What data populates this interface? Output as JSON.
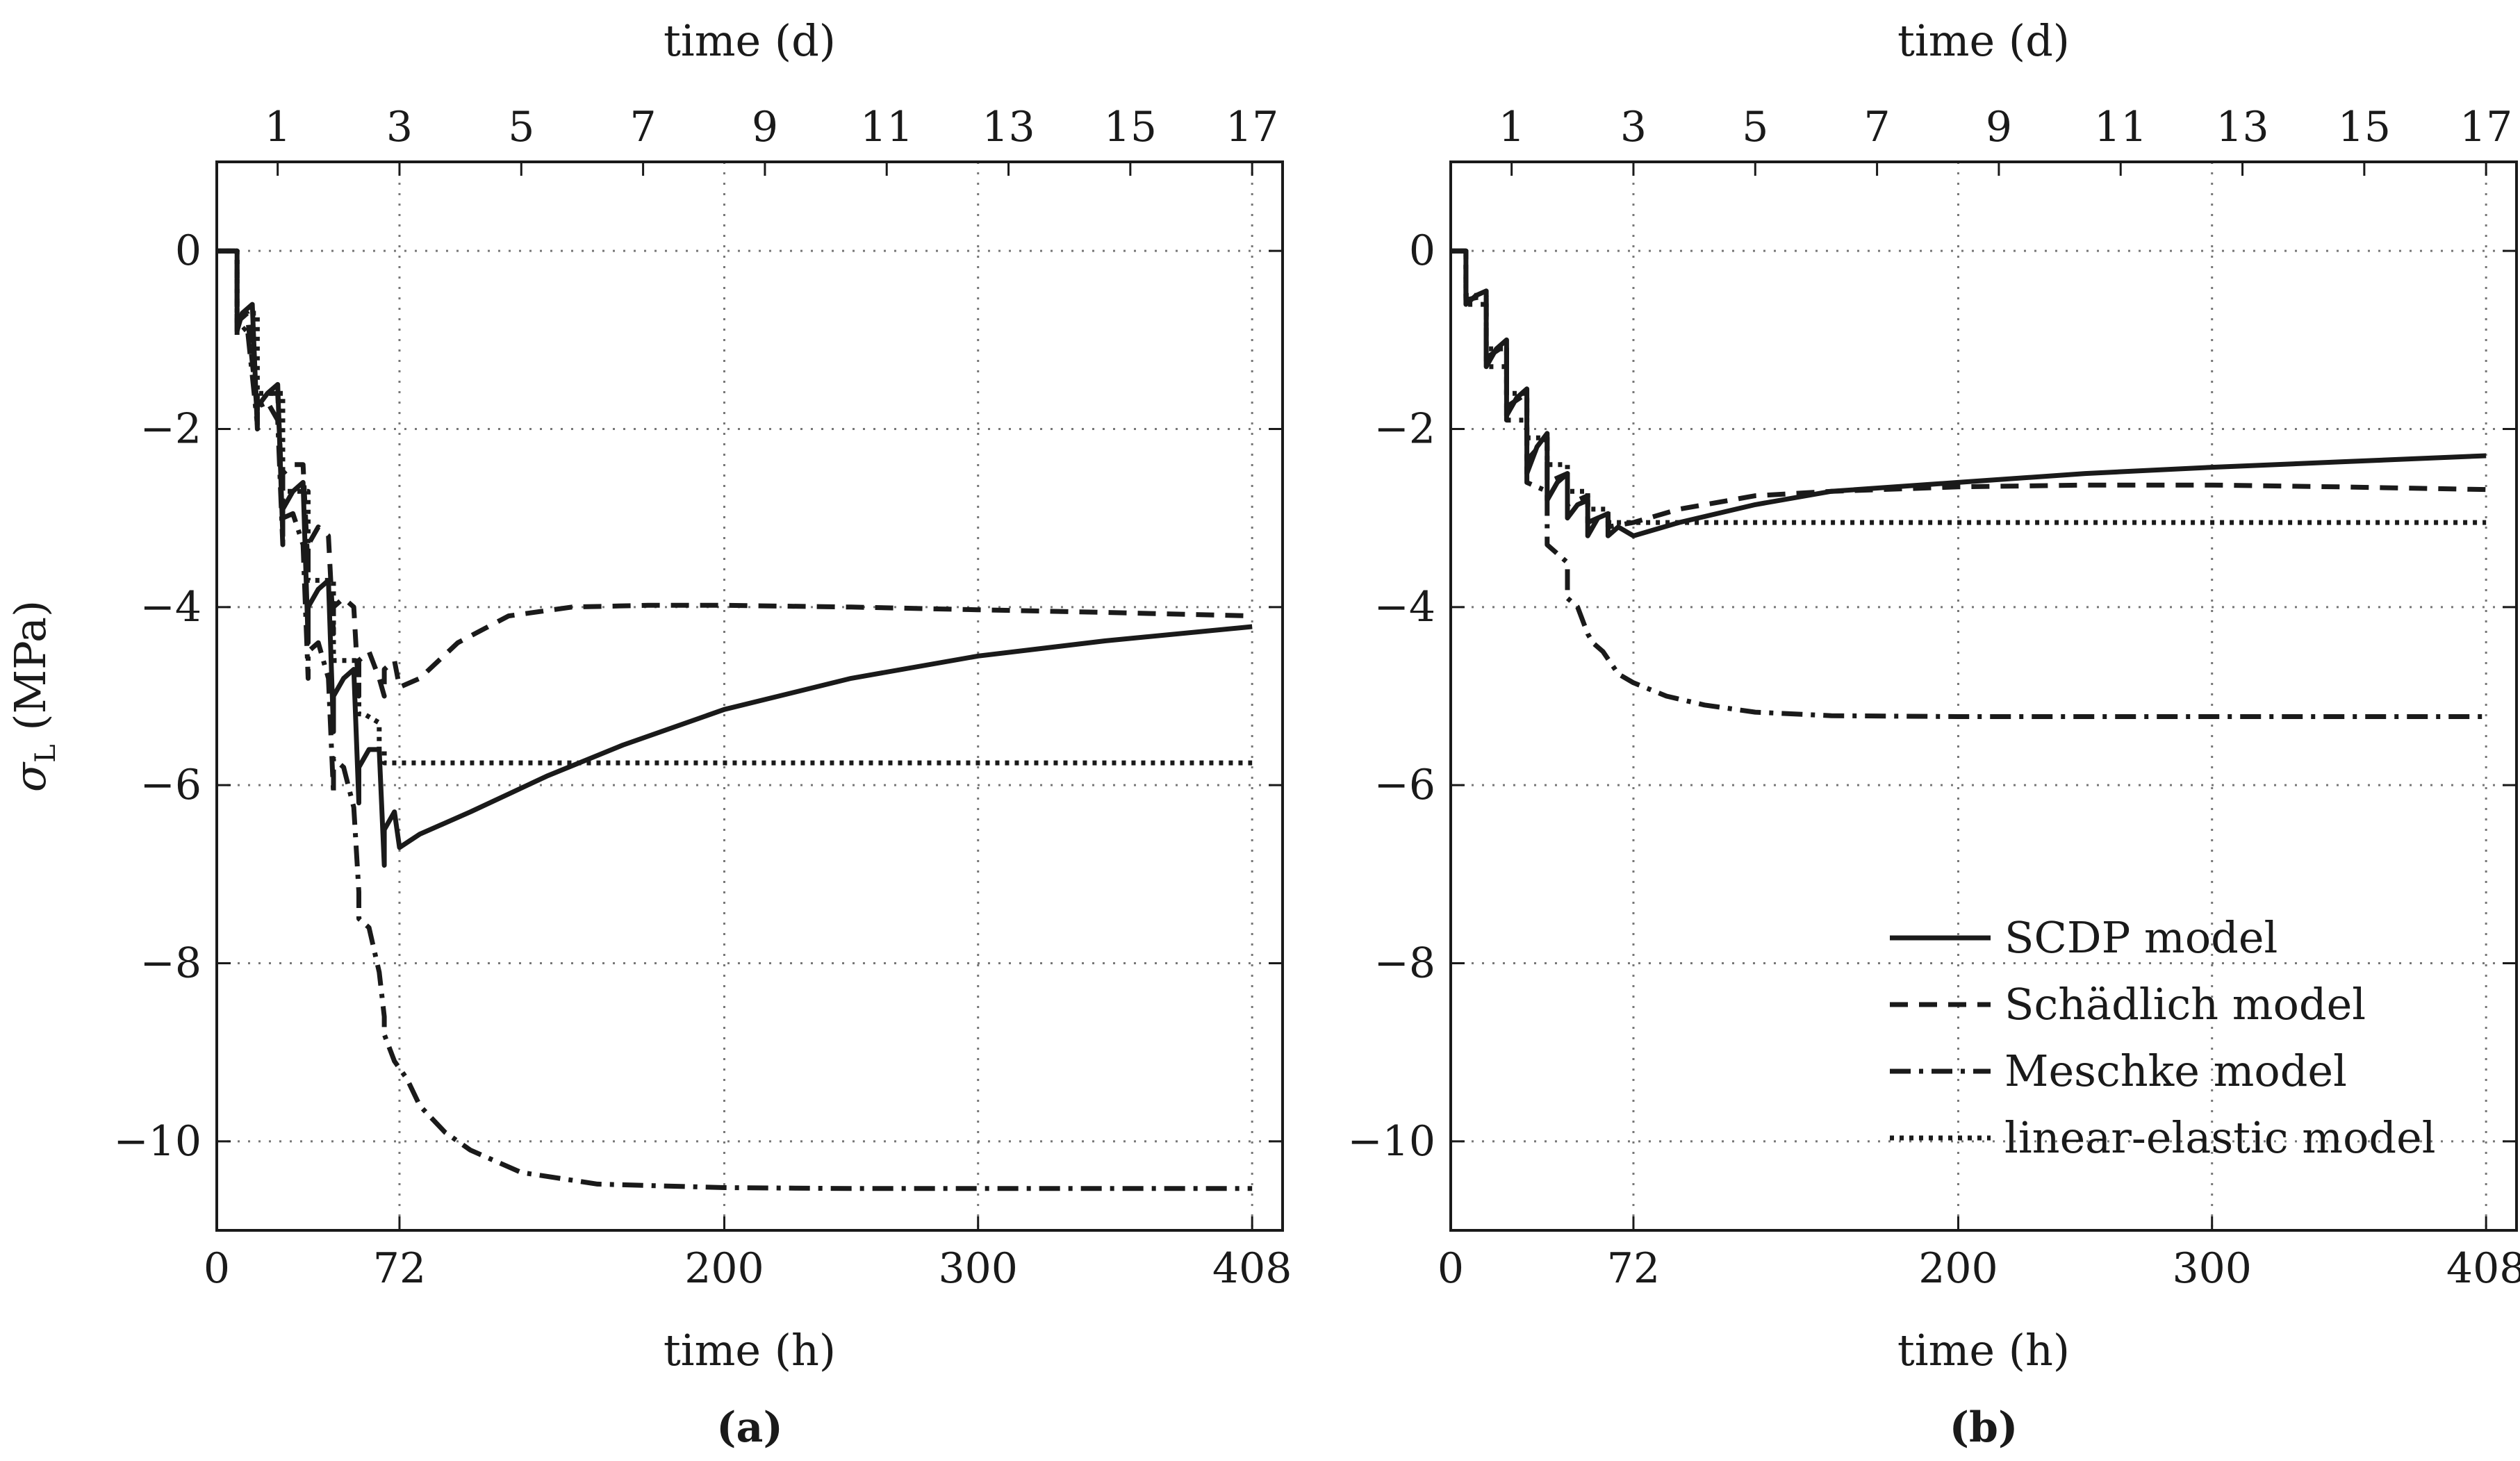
{
  "chart_data": [
    {
      "type": "line",
      "panel_label": "(a)",
      "xlabel": "time (h)",
      "ylabel": "σL (MPa)",
      "x2label": "time (d)",
      "xlim": [
        0,
        420
      ],
      "ylim": [
        -11,
        1
      ],
      "xticks": [
        0,
        72,
        200,
        300,
        408
      ],
      "x2ticks": [
        1,
        3,
        5,
        7,
        9,
        11,
        13,
        15,
        17
      ],
      "yticks": [
        0,
        -2,
        -4,
        -6,
        -8,
        -10
      ],
      "grid": true,
      "series": [
        {
          "name": "SCDP model",
          "style": "solid",
          "x": [
            0,
            8,
            8,
            10,
            14,
            16,
            16,
            20,
            24,
            26,
            26,
            30,
            34,
            36,
            36,
            40,
            44,
            46,
            46,
            50,
            54,
            56,
            56,
            60,
            64,
            66,
            66,
            70,
            72,
            80,
            100,
            130,
            160,
            200,
            250,
            300,
            350,
            408
          ],
          "y": [
            0,
            0,
            -0.9,
            -0.7,
            -0.6,
            -2.0,
            -1.75,
            -1.6,
            -1.5,
            -3.2,
            -2.9,
            -2.7,
            -2.6,
            -4.4,
            -4.0,
            -3.8,
            -3.7,
            -5.4,
            -5.0,
            -4.8,
            -4.7,
            -6.2,
            -5.8,
            -5.6,
            -5.6,
            -6.9,
            -6.5,
            -6.3,
            -6.7,
            -6.55,
            -6.3,
            -5.9,
            -5.55,
            -5.15,
            -4.8,
            -4.55,
            -4.38,
            -4.22
          ]
        },
        {
          "name": "Schädlich model",
          "style": "dashed",
          "x": [
            0,
            8,
            8,
            12,
            16,
            16,
            20,
            24,
            26,
            26,
            30,
            34,
            36,
            36,
            40,
            44,
            46,
            46,
            50,
            54,
            56,
            56,
            60,
            64,
            66,
            66,
            70,
            72,
            80,
            95,
            115,
            140,
            170,
            200,
            250,
            300,
            350,
            408
          ],
          "y": [
            0,
            0,
            -0.8,
            -0.7,
            -1.8,
            -1.6,
            -1.6,
            -1.6,
            -2.9,
            -2.5,
            -2.4,
            -2.4,
            -3.6,
            -3.3,
            -3.1,
            -3.2,
            -4.3,
            -4.0,
            -3.9,
            -4.0,
            -5.0,
            -4.6,
            -4.5,
            -4.8,
            -5.0,
            -4.7,
            -4.6,
            -4.9,
            -4.8,
            -4.4,
            -4.1,
            -4.0,
            -3.98,
            -3.98,
            -4.0,
            -4.03,
            -4.06,
            -4.1
          ]
        },
        {
          "name": "Meschke model",
          "style": "dashdot",
          "x": [
            0,
            8,
            8,
            12,
            16,
            16,
            20,
            24,
            26,
            26,
            30,
            34,
            36,
            36,
            40,
            44,
            46,
            46,
            50,
            54,
            56,
            56,
            60,
            64,
            66,
            66,
            70,
            75,
            80,
            90,
            100,
            120,
            150,
            200,
            250,
            300,
            350,
            408
          ],
          "y": [
            0,
            0,
            -0.95,
            -0.85,
            -1.95,
            -1.75,
            -1.7,
            -1.9,
            -3.3,
            -3.0,
            -2.95,
            -3.3,
            -4.8,
            -4.5,
            -4.4,
            -4.8,
            -6.1,
            -5.7,
            -5.8,
            -6.25,
            -7.2,
            -7.5,
            -7.6,
            -8.1,
            -8.6,
            -8.8,
            -9.1,
            -9.3,
            -9.6,
            -9.9,
            -10.1,
            -10.35,
            -10.48,
            -10.52,
            -10.53,
            -10.53,
            -10.53,
            -10.53
          ]
        },
        {
          "name": "linear-elastic model",
          "style": "dotted",
          "x": [
            0,
            8,
            8,
            16,
            16,
            26,
            26,
            36,
            36,
            46,
            46,
            56,
            56,
            58,
            64,
            64,
            66,
            66,
            72,
            408
          ],
          "y": [
            0,
            0,
            -0.7,
            -0.7,
            -1.6,
            -1.6,
            -2.7,
            -2.7,
            -3.7,
            -3.7,
            -4.6,
            -4.6,
            -5.2,
            -5.2,
            -5.3,
            -5.6,
            -5.6,
            -5.75,
            -5.75,
            -5.75
          ]
        }
      ]
    },
    {
      "type": "line",
      "panel_label": "(b)",
      "xlabel": "time (h)",
      "ylabel": "",
      "x2label": "time (d)",
      "xlim": [
        0,
        420
      ],
      "ylim": [
        -11,
        1
      ],
      "xticks": [
        0,
        72,
        200,
        300,
        408
      ],
      "x2ticks": [
        1,
        3,
        5,
        7,
        9,
        11,
        13,
        15,
        17
      ],
      "yticks": [
        0,
        -2,
        -4,
        -6,
        -8,
        -10
      ],
      "grid": true,
      "legend_position": "bottom-right",
      "series": [
        {
          "name": "SCDP model",
          "style": "solid",
          "x": [
            0,
            6,
            6,
            10,
            14,
            14,
            18,
            22,
            22,
            26,
            30,
            30,
            34,
            38,
            38,
            42,
            46,
            46,
            50,
            54,
            54,
            58,
            62,
            62,
            66,
            72,
            90,
            120,
            150,
            200,
            250,
            300,
            350,
            408
          ],
          "y": [
            0,
            0,
            -0.6,
            -0.5,
            -0.45,
            -1.3,
            -1.1,
            -1.0,
            -1.85,
            -1.65,
            -1.55,
            -2.5,
            -2.2,
            -2.05,
            -2.8,
            -2.6,
            -2.5,
            -3.0,
            -2.85,
            -2.8,
            -3.2,
            -3.0,
            -2.95,
            -3.2,
            -3.1,
            -3.2,
            -3.05,
            -2.85,
            -2.7,
            -2.6,
            -2.5,
            -2.43,
            -2.37,
            -2.3
          ]
        },
        {
          "name": "Schädlich model",
          "style": "dashed",
          "x": [
            0,
            6,
            6,
            14,
            14,
            22,
            22,
            30,
            30,
            38,
            38,
            46,
            46,
            54,
            54,
            62,
            62,
            72,
            90,
            120,
            150,
            200,
            250,
            300,
            350,
            408
          ],
          "y": [
            0,
            0,
            -0.55,
            -0.5,
            -1.2,
            -1.05,
            -1.75,
            -1.6,
            -2.35,
            -2.1,
            -2.6,
            -2.5,
            -2.85,
            -2.75,
            -3.05,
            -2.95,
            -3.1,
            -3.05,
            -2.9,
            -2.75,
            -2.7,
            -2.65,
            -2.63,
            -2.63,
            -2.65,
            -2.68
          ]
        },
        {
          "name": "Meschke model",
          "style": "dashdot",
          "x": [
            0,
            6,
            6,
            14,
            14,
            22,
            22,
            30,
            30,
            38,
            38,
            46,
            46,
            50,
            54,
            56,
            60,
            66,
            72,
            85,
            100,
            120,
            150,
            200,
            250,
            300,
            350,
            408
          ],
          "y": [
            0,
            0,
            -0.6,
            -0.6,
            -1.3,
            -1.3,
            -1.9,
            -1.9,
            -2.6,
            -2.7,
            -3.3,
            -3.5,
            -3.9,
            -4.0,
            -4.3,
            -4.4,
            -4.5,
            -4.75,
            -4.85,
            -5.0,
            -5.1,
            -5.18,
            -5.22,
            -5.23,
            -5.23,
            -5.23,
            -5.23,
            -5.23
          ]
        },
        {
          "name": "linear-elastic model",
          "style": "dotted",
          "x": [
            0,
            6,
            6,
            14,
            14,
            22,
            22,
            30,
            30,
            38,
            38,
            46,
            46,
            54,
            54,
            62,
            62,
            72,
            408
          ],
          "y": [
            0,
            0,
            -0.5,
            -0.5,
            -1.1,
            -1.1,
            -1.6,
            -1.6,
            -2.1,
            -2.1,
            -2.4,
            -2.4,
            -2.7,
            -2.7,
            -2.9,
            -2.9,
            -3.05,
            -3.05,
            -3.05
          ]
        }
      ]
    }
  ]
}
